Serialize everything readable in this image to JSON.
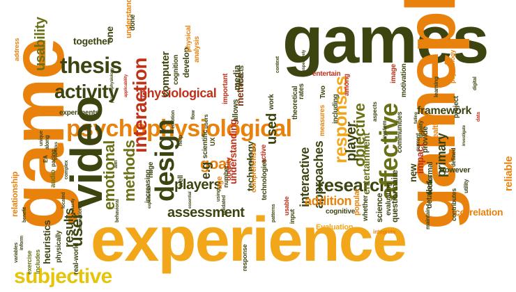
{
  "palette": {
    "dark_olive": "#3d4410",
    "olive": "#6a7016",
    "orange": "#e8820c",
    "amber": "#f2a71b",
    "yellow": "#e5c40a",
    "dark_red": "#8e2412",
    "red": "#c0311a",
    "brown": "#7a3412"
  },
  "words": [
    "games",
    "gameplay",
    "game",
    "experience",
    "psychophysiological",
    "video",
    "subjective",
    "activity",
    "thesis",
    "usability",
    "interaction",
    "design",
    "emotional",
    "methods",
    "assessment",
    "research",
    "affective",
    "objective",
    "responses",
    "physiological",
    "players",
    "goal",
    "e.g",
    "interactive",
    "approaches",
    "addition",
    "framework",
    "player",
    "primary",
    "reliable",
    "user",
    "results",
    "heuristics",
    "correlation",
    "computer",
    "understanding",
    "technology",
    "used",
    "together",
    "one",
    "relationship",
    "experiments",
    "entertainment",
    "metrics",
    "develop",
    "cognition",
    "scientific",
    "questionnaire",
    "Evaluation",
    "cognitive",
    "new",
    "impact",
    "formal",
    "However",
    "provide",
    "focus",
    "science",
    "popular",
    "motivation",
    "project",
    "contributes",
    "entertain",
    "theoretical",
    "allows",
    "increasing",
    "huge",
    "real-world",
    "physically",
    "audio",
    "exercise",
    "includes",
    "well",
    "age",
    "media",
    "effects",
    "important",
    "measures",
    "detailed",
    "evaluating",
    "Two",
    "rates",
    "including",
    "among",
    "health",
    "address",
    "response",
    "whether",
    "input",
    "usable",
    "comprehensive",
    "active",
    "technologies",
    "communities",
    "obesity",
    "work",
    "understand",
    "done",
    "analysis",
    "physical",
    "applicability",
    "psychophysiology",
    "pacing",
    "EA",
    "along",
    "unique",
    "benefit",
    "animation",
    "variables",
    "inform",
    "located",
    "complex",
    "aim",
    "behavioral",
    "validated",
    "patterns",
    "data",
    "integrate",
    "maintain",
    "defined",
    "aspects",
    "current",
    "quality",
    "utility",
    "system",
    "emotion",
    "flow",
    "image",
    "help",
    "using",
    "number",
    "UX",
    "users",
    "context",
    "respectively",
    "psychology",
    "learning",
    "digital",
    "investigate",
    "falling",
    "provides",
    "countries",
    "exactly",
    "experiential",
    "essential",
    "players'"
  ]
}
